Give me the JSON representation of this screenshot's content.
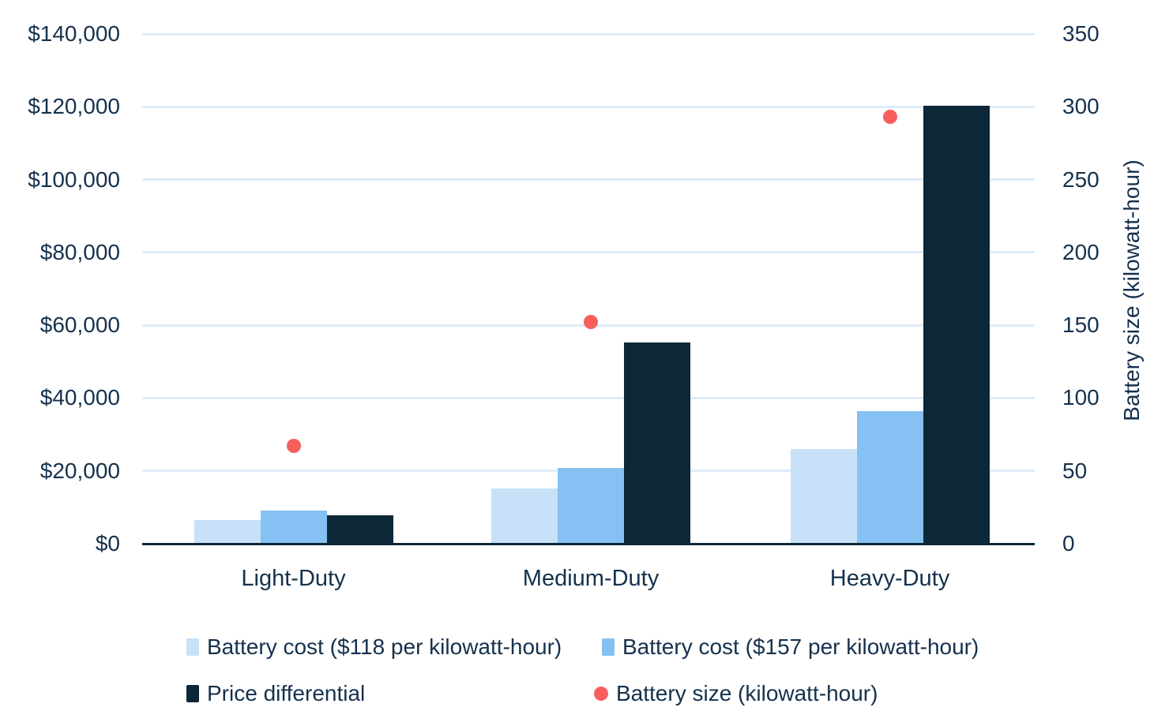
{
  "chart_data": {
    "type": "bar",
    "subtype": "grouped-bars-with-right-axis-scatter",
    "categories": [
      "Light-Duty",
      "Medium-Duty",
      "Heavy-Duty"
    ],
    "series": [
      {
        "name": "Battery cost ($118 per kilowatt-hour)",
        "render": "bar",
        "axis": "left",
        "color": "#c7e1f8",
        "values": [
          6600,
          15100,
          26000
        ]
      },
      {
        "name": "Battery cost ($157 per kilowatt-hour)",
        "render": "bar",
        "axis": "left",
        "color": "#85c1f2",
        "values": [
          9200,
          20700,
          36500
        ]
      },
      {
        "name": "Price differential",
        "render": "bar",
        "axis": "left",
        "color": "#0c2737",
        "values": [
          7900,
          55200,
          120200
        ]
      },
      {
        "name": "Battery size (kilowatt-hour)",
        "render": "scatter",
        "axis": "right",
        "color": "#f65f5c",
        "values": [
          67,
          152,
          293
        ]
      }
    ],
    "left_axis": {
      "min": 0,
      "max": 140000,
      "ticks": [
        {
          "value": 0,
          "label": "$0"
        },
        {
          "value": 20000,
          "label": "$20,000"
        },
        {
          "value": 40000,
          "label": "$40,000"
        },
        {
          "value": 60000,
          "label": "$60,000"
        },
        {
          "value": 80000,
          "label": "$80,000"
        },
        {
          "value": 100000,
          "label": "$100,000"
        },
        {
          "value": 120000,
          "label": "$120,000"
        },
        {
          "value": 140000,
          "label": "$140,000"
        }
      ]
    },
    "right_axis": {
      "min": 0,
      "max": 350,
      "title": "Battery size (kilowatt-hour)",
      "ticks": [
        {
          "value": 0,
          "label": "0"
        },
        {
          "value": 50,
          "label": "50"
        },
        {
          "value": 100,
          "label": "100"
        },
        {
          "value": 150,
          "label": "150"
        },
        {
          "value": 200,
          "label": "200"
        },
        {
          "value": 250,
          "label": "250"
        },
        {
          "value": 300,
          "label": "300"
        },
        {
          "value": 350,
          "label": "350"
        }
      ]
    },
    "grid": true,
    "legend_position": "bottom",
    "legend_rows": [
      [
        0,
        1
      ],
      [
        2,
        3
      ]
    ],
    "styles": {
      "gridline_color": "#deebfa",
      "axis_line_color": "#0c2737",
      "text_color": "#15314d",
      "background": "#ffffff"
    }
  }
}
